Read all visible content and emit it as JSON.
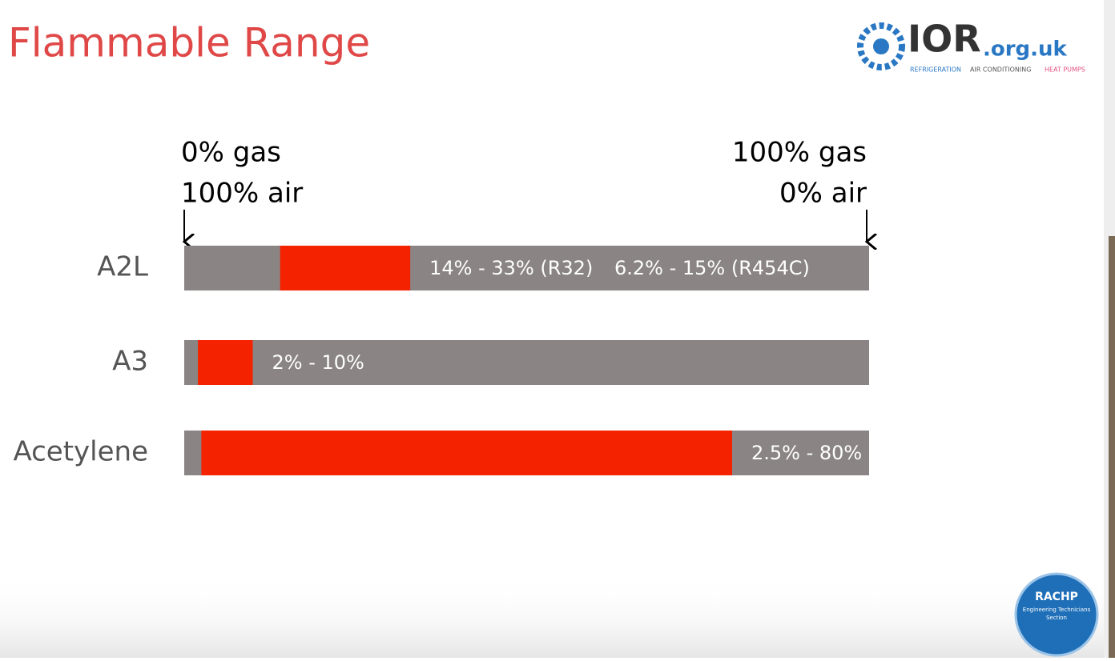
{
  "chart_data": {
    "type": "range",
    "title": "Flammable Range",
    "categories": [
      "A2L",
      "A3",
      "Acetylene"
    ],
    "low": [
      14,
      2,
      2.5
    ],
    "high": [
      33,
      10,
      80
    ],
    "value_labels": [
      "14% - 33% (R32)",
      "2% - 10%",
      "2.5% - 80%"
    ],
    "annotations": [
      "6.2% - 15% (R454C)"
    ],
    "axis_start_labels": [
      "0% gas",
      "100% air"
    ],
    "axis_end_labels": [
      "100% gas",
      "0% air"
    ],
    "xlim": [
      0,
      100
    ],
    "color": "#f52200",
    "track_color": "#8a8484"
  },
  "logo": {
    "name": "IOR",
    "domain": ".org.uk",
    "tagline": [
      "REFRIGERATION",
      "AIR CONDITIONING",
      "HEAT PUMPS"
    ]
  },
  "badge": {
    "title": "RACHP",
    "subtitle": [
      "Engineering Technicians",
      "Section"
    ]
  }
}
